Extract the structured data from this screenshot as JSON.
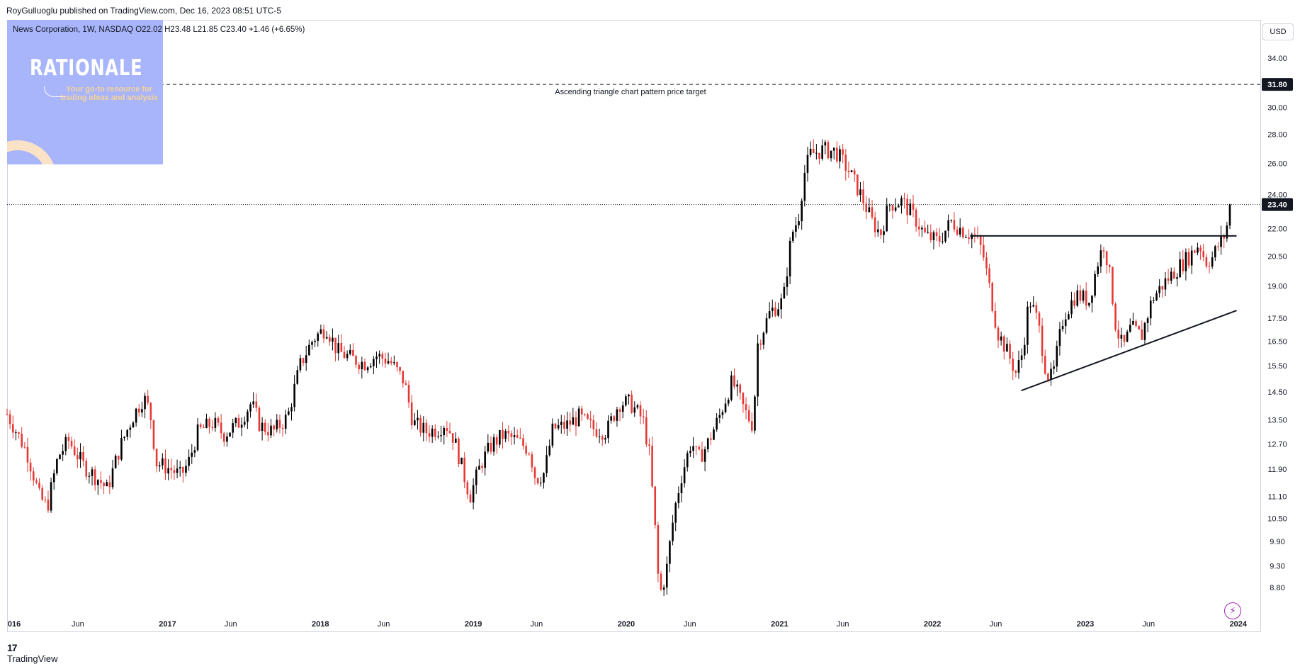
{
  "header": {
    "publisher": "RoyGulluoglu published on TradingView.com, Dec 16, 2023 08:51 UTC-5"
  },
  "symbol_info": "News Corporation, 1W, NASDAQ  O22.02  H23.48  L21.85  C23.40  +1.46 (+6.65%)",
  "watermark": {
    "title": "RATIONALE",
    "subtitle": "Your go-to resource for trading ideas and analysis"
  },
  "currency_label": "USD",
  "footer": {
    "brand": "TradingView",
    "brand_mark": "17"
  },
  "icons": {
    "bolt": "bolt-icon"
  },
  "colors": {
    "up": "#000000",
    "down": "#e53935",
    "accent": "#131722"
  },
  "chart_data": {
    "type": "candlestick",
    "title": "",
    "xlabel": "",
    "ylabel": "",
    "scale": "log",
    "ylim": [
      8.2,
      37.5
    ],
    "y_ticks": [
      "8.80",
      "9.30",
      "9.90",
      "10.50",
      "11.10",
      "11.90",
      "12.70",
      "13.50",
      "14.50",
      "15.50",
      "16.50",
      "17.50",
      "19.00",
      "20.50",
      "22.00",
      "24.00",
      "26.00",
      "28.00",
      "30.00",
      "34.00"
    ],
    "x_ticks": [
      {
        "label": "016",
        "date": "2016-01-01"
      },
      {
        "label": "Jun",
        "date": "2016-06-01"
      },
      {
        "label": "2017",
        "date": "2017-01-01"
      },
      {
        "label": "Jun",
        "date": "2017-06-01"
      },
      {
        "label": "2018",
        "date": "2018-01-01"
      },
      {
        "label": "Jun",
        "date": "2018-06-01"
      },
      {
        "label": "2019",
        "date": "2019-01-01"
      },
      {
        "label": "Jun",
        "date": "2019-06-01"
      },
      {
        "label": "2020",
        "date": "2020-01-01"
      },
      {
        "label": "Jun",
        "date": "2020-06-01"
      },
      {
        "label": "2021",
        "date": "2021-01-01"
      },
      {
        "label": "Jun",
        "date": "2021-06-01"
      },
      {
        "label": "2022",
        "date": "2022-01-01"
      },
      {
        "label": "Jun",
        "date": "2022-06-01"
      },
      {
        "label": "2023",
        "date": "2023-01-01"
      },
      {
        "label": "Jun",
        "date": "2023-06-01"
      },
      {
        "label": "2024",
        "date": "2024-01-01"
      }
    ],
    "last_price": {
      "value": 23.4,
      "label": "23.40"
    },
    "target": {
      "value": 31.8,
      "label": "31.80",
      "annotation": "Ascending triangle chart pattern price target"
    },
    "resistance_line": {
      "value": 21.6,
      "start": "2022-04-01",
      "end": "2023-12-28"
    },
    "support_line": {
      "start": {
        "date": "2022-08-01",
        "value": 14.55
      },
      "end": {
        "date": "2023-12-28",
        "value": 17.85
      }
    },
    "close_path": [
      [
        "2015-12-15",
        13.7
      ],
      [
        "2016-02-01",
        12.4
      ],
      [
        "2016-03-01",
        11.1
      ],
      [
        "2016-03-20",
        10.8
      ],
      [
        "2016-04-15",
        12.3
      ],
      [
        "2016-05-10",
        12.8
      ],
      [
        "2016-06-15",
        12.0
      ],
      [
        "2016-07-20",
        11.6
      ],
      [
        "2016-08-10",
        11.3
      ],
      [
        "2016-09-10",
        12.6
      ],
      [
        "2016-10-10",
        13.6
      ],
      [
        "2016-11-05",
        14.3
      ],
      [
        "2016-11-20",
        13.8
      ],
      [
        "2016-12-05",
        12.1
      ],
      [
        "2017-01-10",
        11.9
      ],
      [
        "2017-02-01",
        11.7
      ],
      [
        "2017-02-20",
        12.1
      ],
      [
        "2017-03-15",
        13.1
      ],
      [
        "2017-04-20",
        13.4
      ],
      [
        "2017-05-15",
        13.0
      ],
      [
        "2017-06-20",
        13.4
      ],
      [
        "2017-07-20",
        14.1
      ],
      [
        "2017-08-10",
        13.3
      ],
      [
        "2017-09-10",
        13.1
      ],
      [
        "2017-10-15",
        13.6
      ],
      [
        "2017-11-15",
        15.6
      ],
      [
        "2017-12-15",
        16.6
      ],
      [
        "2018-01-15",
        17.1
      ],
      [
        "2018-02-10",
        16.1
      ],
      [
        "2018-03-15",
        15.8
      ],
      [
        "2018-04-15",
        15.6
      ],
      [
        "2018-05-15",
        15.9
      ],
      [
        "2018-06-15",
        15.7
      ],
      [
        "2018-07-20",
        14.9
      ],
      [
        "2018-08-10",
        13.4
      ],
      [
        "2018-09-10",
        13.1
      ],
      [
        "2018-10-10",
        13.2
      ],
      [
        "2018-10-25",
        13.4
      ],
      [
        "2018-11-15",
        12.9
      ],
      [
        "2018-12-10",
        11.7
      ],
      [
        "2018-12-24",
        11.1
      ],
      [
        "2019-01-20",
        12.1
      ],
      [
        "2019-02-15",
        12.7
      ],
      [
        "2019-03-15",
        13.0
      ],
      [
        "2019-04-15",
        12.8
      ],
      [
        "2019-05-15",
        12.5
      ],
      [
        "2019-05-30",
        11.6
      ],
      [
        "2019-06-20",
        11.8
      ],
      [
        "2019-07-10",
        13.2
      ],
      [
        "2019-08-10",
        13.3
      ],
      [
        "2019-09-10",
        13.6
      ],
      [
        "2019-10-15",
        13.2
      ],
      [
        "2019-11-15",
        13.1
      ],
      [
        "2019-12-15",
        14.1
      ],
      [
        "2020-01-10",
        14.1
      ],
      [
        "2020-02-10",
        13.5
      ],
      [
        "2020-02-25",
        12.4
      ],
      [
        "2020-03-10",
        10.2
      ],
      [
        "2020-03-20",
        8.6
      ],
      [
        "2020-04-05",
        9.1
      ],
      [
        "2020-04-25",
        10.7
      ],
      [
        "2020-05-10",
        11.6
      ],
      [
        "2020-06-05",
        12.8
      ],
      [
        "2020-06-20",
        12.2
      ],
      [
        "2020-07-10",
        12.6
      ],
      [
        "2020-08-10",
        13.6
      ],
      [
        "2020-09-10",
        14.9
      ],
      [
        "2020-10-10",
        13.8
      ],
      [
        "2020-10-30",
        13.3
      ],
      [
        "2020-11-10",
        16.4
      ],
      [
        "2020-12-10",
        17.8
      ],
      [
        "2021-01-10",
        18.3
      ],
      [
        "2021-01-30",
        21.7
      ],
      [
        "2021-02-15",
        22.6
      ],
      [
        "2021-03-01",
        25.3
      ],
      [
        "2021-03-15",
        26.6
      ],
      [
        "2021-04-15",
        26.9
      ],
      [
        "2021-05-15",
        26.8
      ],
      [
        "2021-06-15",
        25.5
      ],
      [
        "2021-07-10",
        24.2
      ],
      [
        "2021-08-10",
        22.4
      ],
      [
        "2021-08-30",
        21.7
      ],
      [
        "2021-09-20",
        23.4
      ],
      [
        "2021-10-20",
        23.6
      ],
      [
        "2021-11-20",
        22.6
      ],
      [
        "2021-12-15",
        21.6
      ],
      [
        "2022-01-15",
        21.3
      ],
      [
        "2022-02-15",
        22.4
      ],
      [
        "2022-03-15",
        21.9
      ],
      [
        "2022-04-10",
        21.6
      ],
      [
        "2022-04-30",
        20.8
      ],
      [
        "2022-05-20",
        18.6
      ],
      [
        "2022-06-05",
        16.9
      ],
      [
        "2022-06-25",
        16.2
      ],
      [
        "2022-07-20",
        15.2
      ],
      [
        "2022-08-05",
        16.1
      ],
      [
        "2022-08-20",
        18.4
      ],
      [
        "2022-09-10",
        17.3
      ],
      [
        "2022-09-30",
        15.2
      ],
      [
        "2022-10-15",
        15.0
      ],
      [
        "2022-11-10",
        17.6
      ],
      [
        "2022-12-10",
        18.6
      ],
      [
        "2023-01-10",
        18.3
      ],
      [
        "2023-02-01",
        20.3
      ],
      [
        "2023-02-15",
        21.2
      ],
      [
        "2023-03-01",
        19.4
      ],
      [
        "2023-03-15",
        17.1
      ],
      [
        "2023-04-01",
        16.2
      ],
      [
        "2023-04-20",
        17.1
      ],
      [
        "2023-05-15",
        16.7
      ],
      [
        "2023-06-10",
        18.4
      ],
      [
        "2023-07-10",
        19.2
      ],
      [
        "2023-08-10",
        19.9
      ],
      [
        "2023-09-10",
        20.6
      ],
      [
        "2023-09-30",
        21.2
      ],
      [
        "2023-10-15",
        20.2
      ],
      [
        "2023-10-30",
        20.4
      ],
      [
        "2023-11-15",
        21.1
      ],
      [
        "2023-12-01",
        21.7
      ],
      [
        "2023-12-15",
        23.4
      ]
    ]
  }
}
